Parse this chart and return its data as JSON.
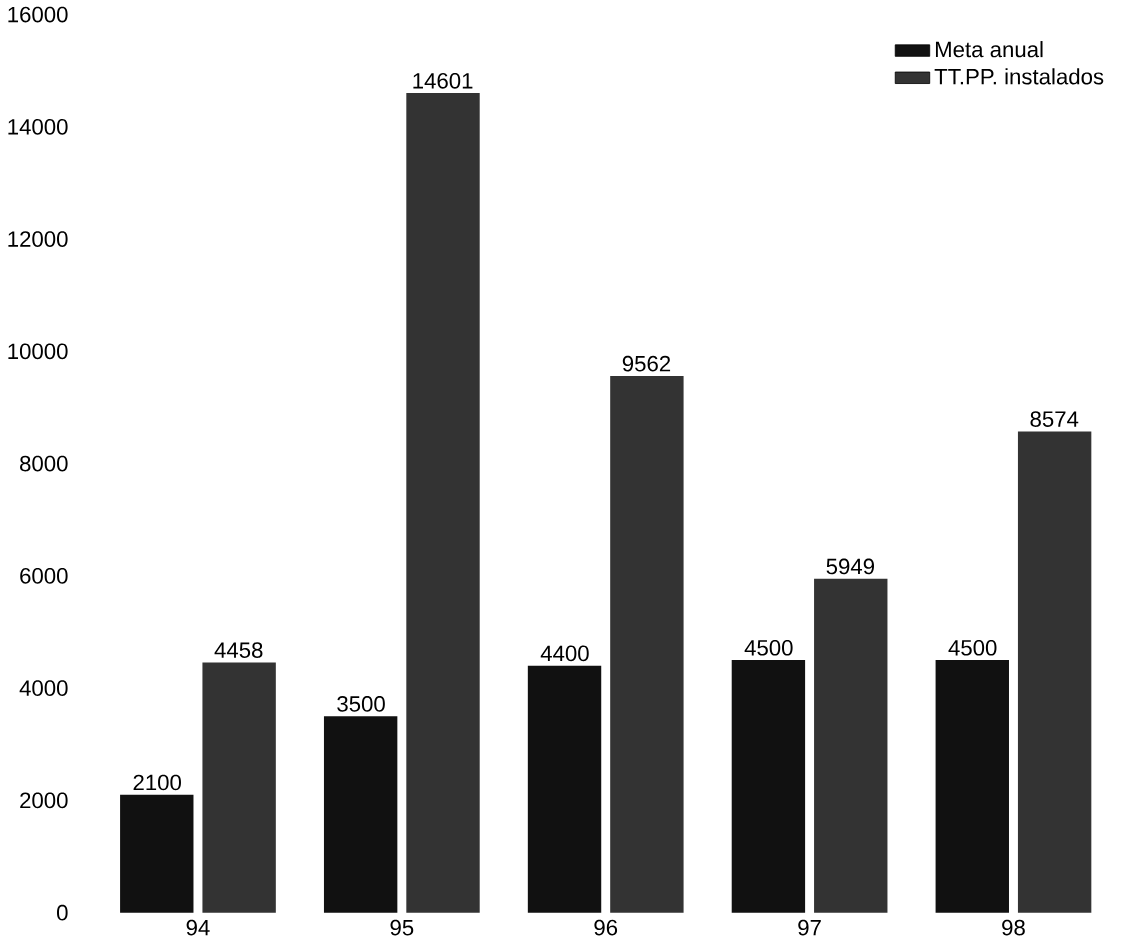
{
  "chart_data": {
    "type": "bar",
    "categories": [
      "94",
      "95",
      "96",
      "97",
      "98"
    ],
    "series": [
      {
        "name": "Meta anual",
        "color": "#111111",
        "values": [
          2100,
          3500,
          4400,
          4500,
          4500
        ]
      },
      {
        "name": "TT.PP. instalados",
        "color": "#333333",
        "values": [
          4458,
          14601,
          9562,
          5949,
          8574
        ]
      }
    ],
    "ylim": [
      0,
      16000
    ],
    "yticks": [
      0,
      2000,
      4000,
      6000,
      8000,
      10000,
      12000,
      14000,
      16000
    ],
    "data_labels": true,
    "legend": "top right",
    "grid": false
  }
}
